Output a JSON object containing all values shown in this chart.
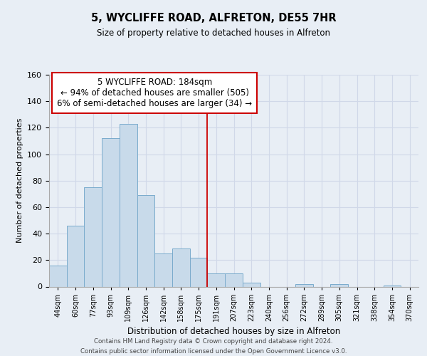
{
  "title": "5, WYCLIFFE ROAD, ALFRETON, DE55 7HR",
  "subtitle": "Size of property relative to detached houses in Alfreton",
  "xlabel": "Distribution of detached houses by size in Alfreton",
  "ylabel": "Number of detached properties",
  "bar_labels": [
    "44sqm",
    "60sqm",
    "77sqm",
    "93sqm",
    "109sqm",
    "126sqm",
    "142sqm",
    "158sqm",
    "175sqm",
    "191sqm",
    "207sqm",
    "223sqm",
    "240sqm",
    "256sqm",
    "272sqm",
    "289sqm",
    "305sqm",
    "321sqm",
    "338sqm",
    "354sqm",
    "370sqm"
  ],
  "bar_heights": [
    16,
    46,
    75,
    112,
    123,
    69,
    25,
    29,
    22,
    10,
    10,
    3,
    0,
    0,
    2,
    0,
    2,
    0,
    0,
    1,
    0
  ],
  "bar_color": "#c8daea",
  "bar_edge_color": "#7aabcc",
  "vline_index": 9,
  "vline_color": "#cc0000",
  "annotation_text": "5 WYCLIFFE ROAD: 184sqm\n← 94% of detached houses are smaller (505)\n6% of semi-detached houses are larger (34) →",
  "annotation_box_facecolor": "#ffffff",
  "annotation_box_edgecolor": "#cc0000",
  "ylim": [
    0,
    160
  ],
  "yticks": [
    0,
    20,
    40,
    60,
    80,
    100,
    120,
    140,
    160
  ],
  "grid_color": "#d0d8e8",
  "background_color": "#e8eef5",
  "footer_text": "Contains HM Land Registry data © Crown copyright and database right 2024.\nContains public sector information licensed under the Open Government Licence v3.0."
}
